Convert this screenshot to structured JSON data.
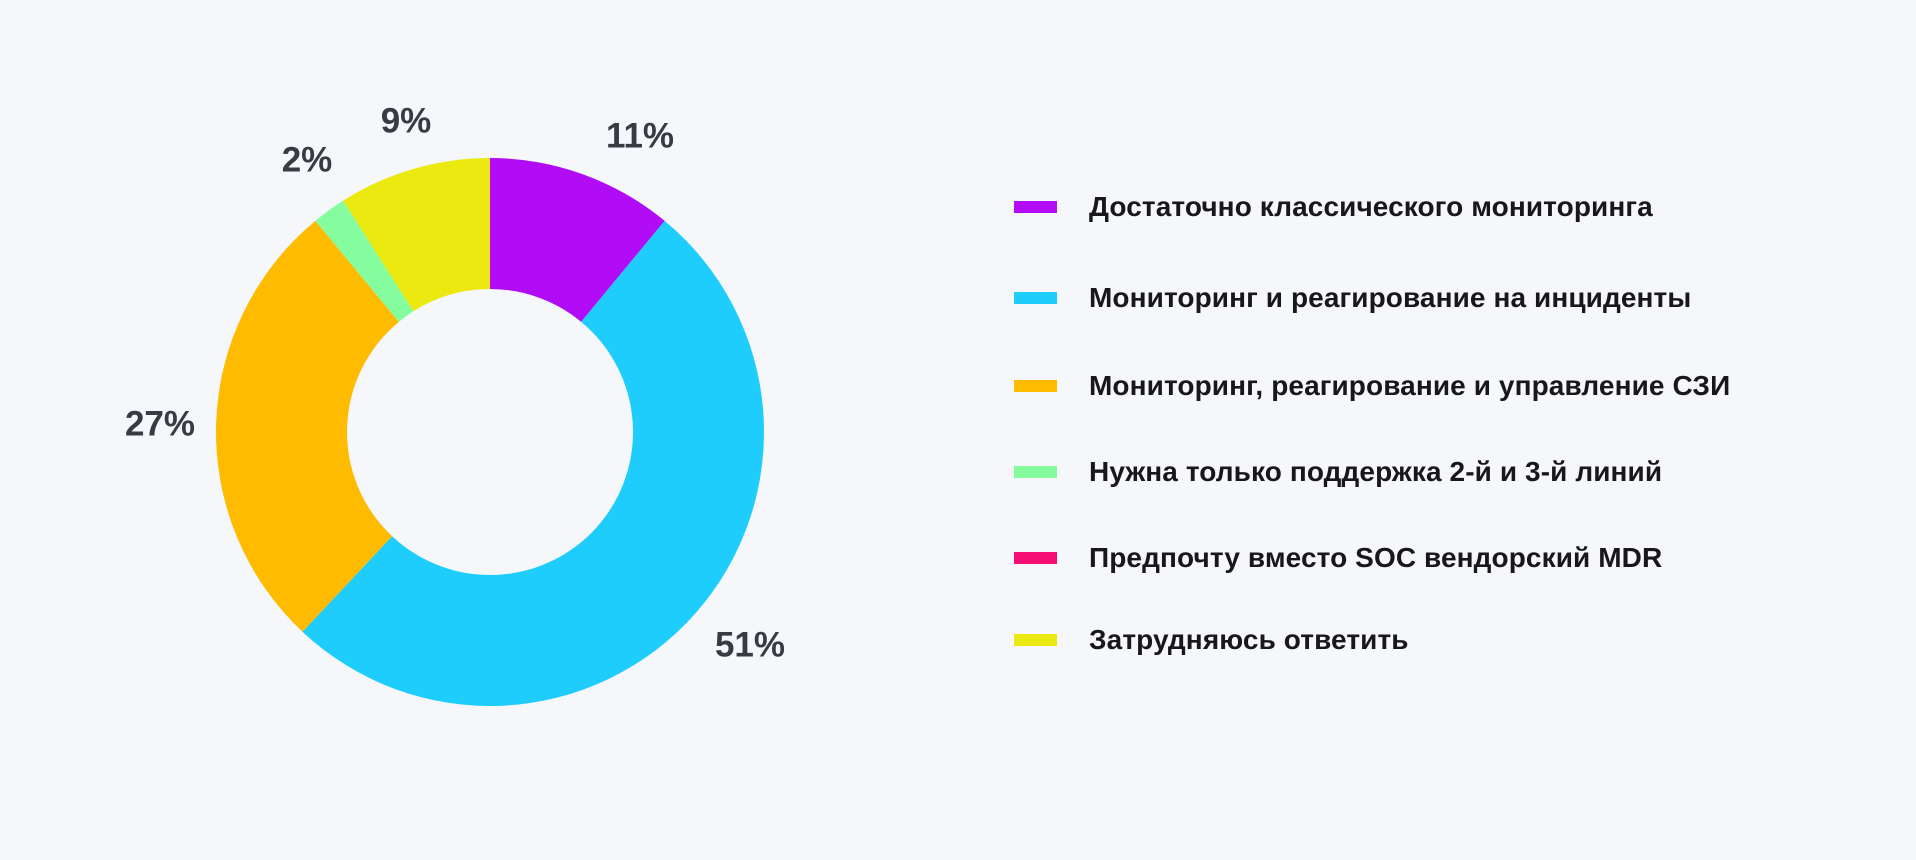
{
  "chart_data": {
    "type": "pie",
    "variant": "donut",
    "title": "",
    "slices": [
      {
        "label": "Достаточно классического мониторинга",
        "value": 11,
        "display": "11%",
        "color": "#b20cf6"
      },
      {
        "label": "Мониторинг и реагирование на инциденты",
        "value": 51,
        "display": "51%",
        "color": "#1fcdfd"
      },
      {
        "label": "Мониторинг, реагирование и управление СЗИ",
        "value": 27,
        "display": "27%",
        "color": "#ffbb00"
      },
      {
        "label": "Нужна только поддержка 2-й и 3-й линий",
        "value": 2,
        "display": "2%",
        "color": "#85fc9e"
      },
      {
        "label": "Предпочту вместо SOC вендорский MDR",
        "value": 0,
        "display": "",
        "color": "#f50f75"
      },
      {
        "label": "Затрудняюсь ответить",
        "value": 9,
        "display": "9%",
        "color": "#ebe90f"
      }
    ],
    "legend_position": "right"
  }
}
